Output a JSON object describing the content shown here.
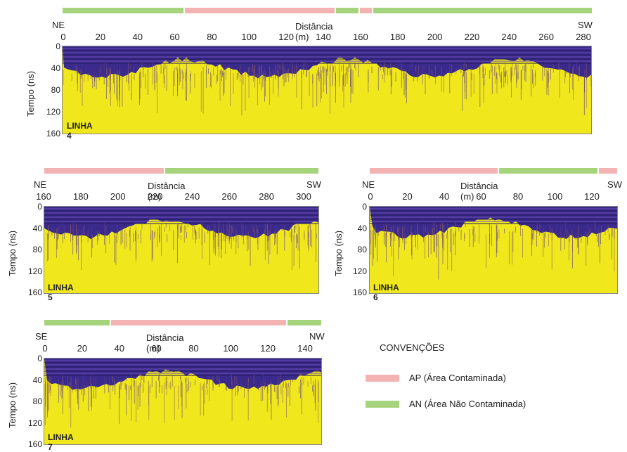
{
  "colors": {
    "ap": "#f4b3b3",
    "an": "#a6d47c",
    "radar_top": "#3a2a8c",
    "radar_bottom": "#f0e81c"
  },
  "ylabel": "Tempo (ns)",
  "xlabel": "Distância (m)",
  "ytick_labels": [
    "0",
    "40",
    "80",
    "120",
    "160"
  ],
  "panels": [
    {
      "id": "l4",
      "name": "LINHA 4",
      "left": "NE",
      "right": "SW",
      "ticks": [
        "0",
        "20",
        "40",
        "60",
        "80",
        "100",
        "120",
        "140",
        "160",
        "180",
        "200",
        "220",
        "240",
        "260",
        "280"
      ],
      "segments": [
        {
          "zone": "an",
          "frac": 0.23
        },
        {
          "zone": "ap",
          "frac": 0.285
        },
        {
          "zone": "an",
          "frac": 0.045
        },
        {
          "zone": "ap",
          "frac": 0.025
        },
        {
          "zone": "an",
          "frac": 0.415
        }
      ]
    },
    {
      "id": "l5",
      "name": "LINHA 5",
      "left": "NE",
      "right": "SW",
      "ticks": [
        "160",
        "180",
        "200",
        "220",
        "240",
        "260",
        "280",
        "300"
      ],
      "segments": [
        {
          "zone": "ap",
          "frac": 0.44
        },
        {
          "zone": "an",
          "frac": 0.56
        }
      ]
    },
    {
      "id": "l6",
      "name": "LINHA 6",
      "left": "NE",
      "right": "SW",
      "ticks": [
        "0",
        "20",
        "40",
        "60",
        "80",
        "100",
        "120"
      ],
      "segments": [
        {
          "zone": "ap",
          "frac": 0.52
        },
        {
          "zone": "an",
          "frac": 0.4
        },
        {
          "zone": "ap",
          "frac": 0.08
        }
      ]
    },
    {
      "id": "l7",
      "name": "LINHA 7",
      "left": "SE",
      "right": "NW",
      "ticks": [
        "0",
        "20",
        "40",
        "60",
        "80",
        "100",
        "120",
        "140"
      ],
      "segments": [
        {
          "zone": "an",
          "frac": 0.24
        },
        {
          "zone": "ap",
          "frac": 0.635
        },
        {
          "zone": "an",
          "frac": 0.125
        }
      ]
    }
  ],
  "legend": {
    "title": "CONVENÇÕES",
    "items": [
      {
        "zone": "ap",
        "label": "AP (Área Contaminada)"
      },
      {
        "zone": "an",
        "label": "AN (Área Não Contaminada)"
      }
    ]
  }
}
